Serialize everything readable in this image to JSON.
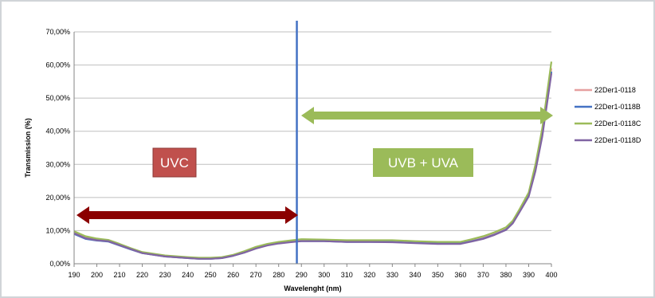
{
  "chart_data": {
    "type": "line",
    "xlabel": "Wavelenght (nm)",
    "ylabel": "Transmission (%)",
    "xlim": [
      190,
      400
    ],
    "ylim": [
      0,
      70
    ],
    "x_ticks": [
      190,
      200,
      210,
      220,
      230,
      240,
      250,
      260,
      270,
      280,
      290,
      300,
      310,
      320,
      330,
      340,
      350,
      360,
      370,
      380,
      390,
      400
    ],
    "y_ticks": [
      0,
      10,
      20,
      30,
      40,
      50,
      60,
      70
    ],
    "y_tick_labels": [
      "0,00%",
      "10,00%",
      "20,00%",
      "30,00%",
      "40,00%",
      "50,00%",
      "60,00%",
      "70,00%"
    ],
    "grid": "horizontal",
    "legend_position": "right",
    "series": [
      {
        "name": "22Der1-0118",
        "color": "#e6a0a0",
        "x": [
          190,
          195,
          200,
          205,
          210,
          215,
          220,
          230,
          240,
          245,
          250,
          255,
          260,
          265,
          270,
          275,
          280,
          285,
          290,
          300,
          310,
          320,
          330,
          340,
          350,
          360,
          365,
          370,
          375,
          380,
          383,
          386,
          390,
          393,
          396,
          400
        ],
        "y": [
          9.5,
          8,
          7.3,
          7,
          5.8,
          4.5,
          3.3,
          2.3,
          1.8,
          1.6,
          1.6,
          1.8,
          2.5,
          3.5,
          4.8,
          5.7,
          6.3,
          6.7,
          7,
          7,
          6.8,
          6.8,
          6.8,
          6.5,
          6.3,
          6.3,
          7,
          7.8,
          9,
          10.5,
          12.5,
          16,
          21,
          29,
          40,
          59
        ]
      },
      {
        "name": "22Der1-0118B",
        "color": "#4472c4",
        "x": [
          190,
          195,
          200,
          205,
          210,
          215,
          220,
          230,
          240,
          245,
          250,
          255,
          260,
          265,
          270,
          275,
          280,
          285,
          290,
          300,
          310,
          320,
          330,
          340,
          350,
          360,
          365,
          370,
          375,
          380,
          383,
          386,
          390,
          393,
          396,
          400
        ],
        "y": [
          9,
          7.5,
          7,
          6.7,
          5.5,
          4.3,
          3.2,
          2.2,
          1.7,
          1.5,
          1.5,
          1.7,
          2.4,
          3.4,
          4.7,
          5.6,
          6.2,
          6.6,
          6.8,
          6.8,
          6.6,
          6.6,
          6.6,
          6.3,
          6.1,
          6.1,
          6.8,
          7.6,
          8.8,
          10.3,
          12.3,
          15.8,
          20.5,
          28.5,
          39,
          58
        ]
      },
      {
        "name": "22Der1-0118C",
        "color": "#9bbb59",
        "x": [
          190,
          195,
          200,
          205,
          210,
          215,
          220,
          230,
          240,
          245,
          250,
          255,
          260,
          265,
          270,
          275,
          280,
          285,
          290,
          300,
          310,
          320,
          330,
          340,
          350,
          360,
          365,
          370,
          375,
          380,
          383,
          386,
          390,
          393,
          396,
          400
        ],
        "y": [
          9.8,
          8.3,
          7.6,
          7.2,
          6,
          4.7,
          3.5,
          2.5,
          2,
          1.8,
          1.8,
          2,
          2.7,
          3.8,
          5.1,
          6,
          6.6,
          7,
          7.4,
          7.3,
          7.1,
          7.1,
          7.1,
          6.8,
          6.6,
          6.6,
          7.4,
          8.3,
          9.5,
          11,
          13,
          16.5,
          21.5,
          30,
          41,
          61
        ]
      },
      {
        "name": "22Der1-0118D",
        "color": "#8064a2",
        "x": [
          190,
          195,
          200,
          205,
          210,
          215,
          220,
          230,
          240,
          245,
          250,
          255,
          260,
          265,
          270,
          275,
          280,
          285,
          290,
          300,
          310,
          320,
          330,
          340,
          350,
          360,
          365,
          370,
          375,
          380,
          383,
          386,
          390,
          393,
          396,
          400
        ],
        "y": [
          9.2,
          7.7,
          7.1,
          6.8,
          5.6,
          4.4,
          3.2,
          2.2,
          1.7,
          1.5,
          1.5,
          1.7,
          2.4,
          3.4,
          4.6,
          5.5,
          6.1,
          6.5,
          6.8,
          6.8,
          6.6,
          6.6,
          6.5,
          6.2,
          6,
          6,
          6.7,
          7.5,
          8.7,
          10.2,
          12.2,
          15.6,
          20.3,
          28,
          38.5,
          57.5
        ]
      }
    ],
    "annotations": {
      "divider_x": 288,
      "uvc_label": "UVC",
      "uvb_uva_label": "UVB + UVA",
      "uvc_box_color": "#c0504d",
      "uvb_box_color": "#9bbb59",
      "uvc_arrow_color": "#8b0000",
      "uvb_arrow_color": "#9bbb59",
      "divider_color": "#4472c4"
    }
  }
}
